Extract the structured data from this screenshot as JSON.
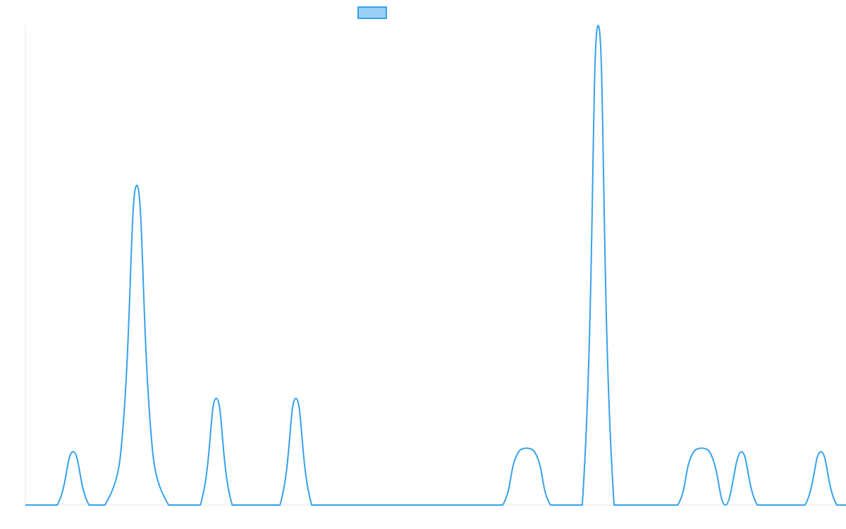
{
  "chart_data": {
    "type": "line",
    "title": "",
    "xlabel": "",
    "ylabel": "",
    "legend": {
      "position": "top-center",
      "entries": [
        {
          "label": "",
          "color": "#36a2eb",
          "fill": "#9ad0f5"
        }
      ]
    },
    "grid": false,
    "axes_visible": false,
    "xlim": [
      0,
      51
    ],
    "ylim": [
      0,
      9
    ],
    "series": [
      {
        "color": "#36a2eb",
        "tension": 0.4,
        "values": [
          0,
          0,
          0,
          1,
          0,
          0,
          1,
          6,
          1,
          0,
          0,
          0,
          2,
          0,
          0,
          0,
          0,
          2,
          0,
          0,
          0,
          0,
          0,
          0,
          0,
          0,
          0,
          0,
          0,
          0,
          0,
          1,
          1,
          0,
          0,
          0,
          9,
          0,
          0,
          0,
          0,
          0,
          1,
          1,
          0,
          1,
          0,
          0,
          0,
          0,
          1,
          0,
          0
        ]
      }
    ]
  }
}
